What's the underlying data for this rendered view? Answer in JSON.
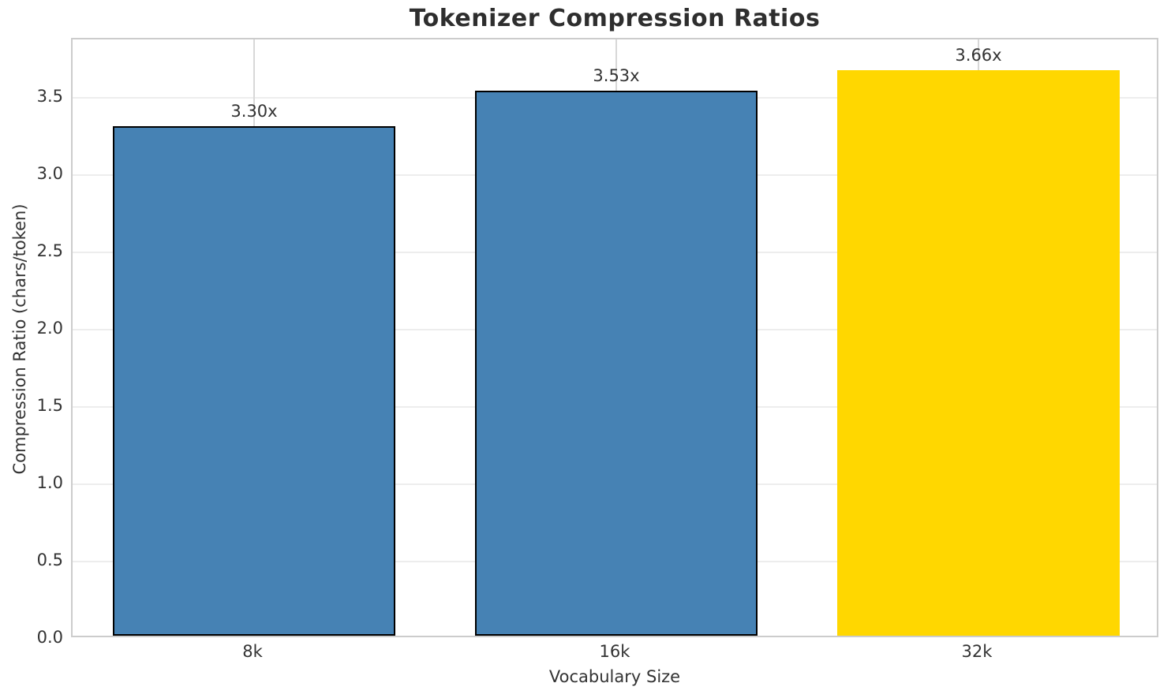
{
  "chart_data": {
    "type": "bar",
    "title": "Tokenizer Compression Ratios",
    "xlabel": "Vocabulary Size",
    "ylabel": "Compression Ratio (chars/token)",
    "categories": [
      "8k",
      "16k",
      "32k"
    ],
    "values": [
      3.3,
      3.53,
      3.66
    ],
    "bar_labels": [
      "3.30x",
      "3.53x",
      "3.66x"
    ],
    "bar_colors": [
      "#4682B4",
      "#4682B4",
      "#FFD700"
    ],
    "bar_edge_colors": [
      "#000000",
      "#000000",
      "none"
    ],
    "ylim": [
      0,
      3.88
    ],
    "yticks": [
      0.0,
      0.5,
      1.0,
      1.5,
      2.0,
      2.5,
      3.0,
      3.5
    ],
    "ytick_labels": [
      "0.0",
      "0.5",
      "1.0",
      "1.5",
      "2.0",
      "2.5",
      "3.0",
      "3.5"
    ],
    "grid": true,
    "legend": "none"
  },
  "colors": {
    "background": "#FFFFFF",
    "spine": "#CCCCCC",
    "grid_horizontal": "#EDEDED",
    "grid_vertical": "#D8D8D8",
    "text": "#333333",
    "title_text": "#2E2E2E"
  }
}
